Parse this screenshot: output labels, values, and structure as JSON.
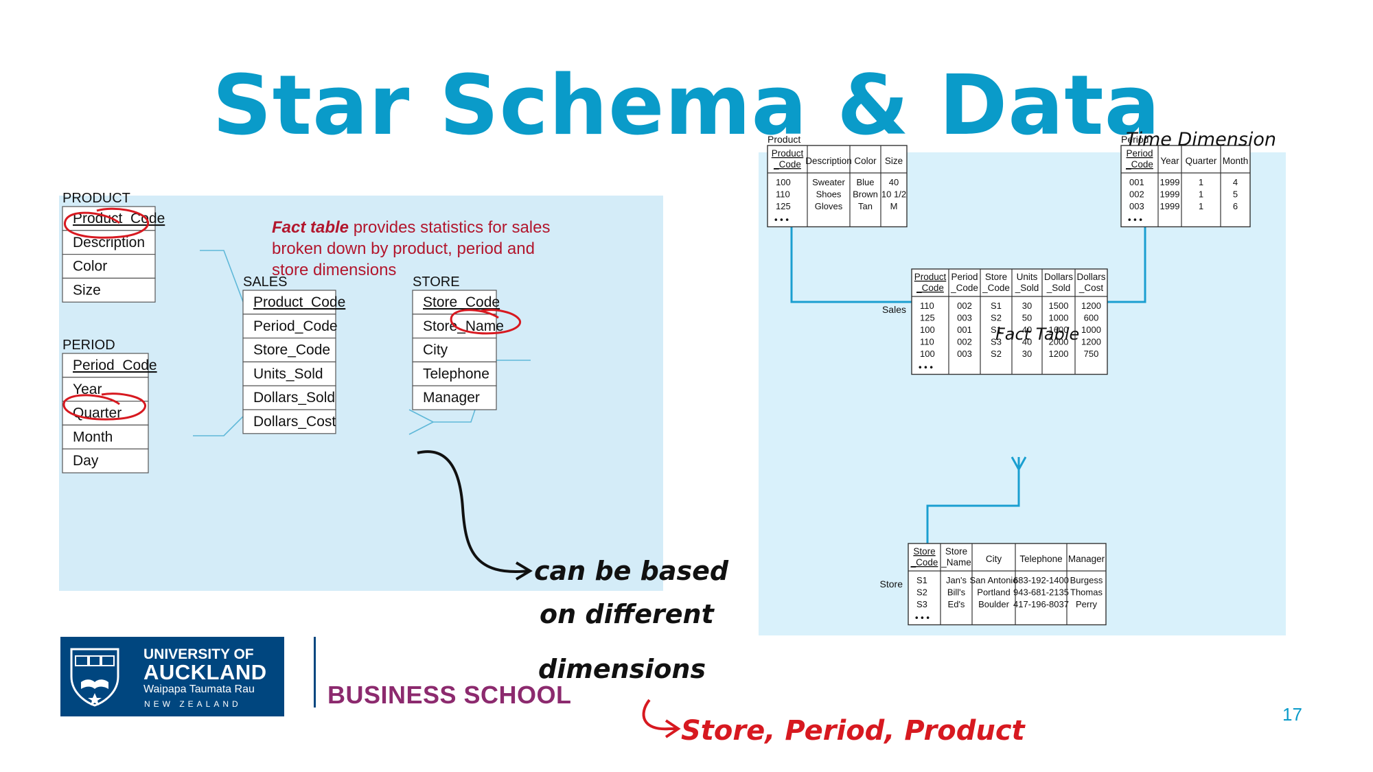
{
  "slide": {
    "title": "Star Schema & Data",
    "page_number": "17",
    "colors": {
      "title": "#0a9bc9",
      "diagram_bg": "#d4ecf8",
      "fact_note": "#b2162d",
      "ink_black": "#111111",
      "ink_red": "#d71920",
      "logo_bg": "#00467f",
      "school": "#8c2a6e"
    }
  },
  "left_diagram": {
    "fact_note_bold": "Fact table",
    "fact_note_lines": [
      " provides statistics for sales",
      "broken down by product, period and",
      "store dimensions"
    ],
    "product": {
      "name": "PRODUCT",
      "fields": [
        "Product_Code",
        "Description",
        "Color",
        "Size"
      ]
    },
    "period": {
      "name": "PERIOD",
      "fields": [
        "Period_Code",
        "Year",
        "Quarter",
        "Month",
        "Day"
      ]
    },
    "sales": {
      "name": "SALES",
      "fields": [
        "Product_Code",
        "Period_Code",
        "Store_Code",
        "Units_Sold",
        "Dollars_Sold",
        "Dollars_Cost"
      ]
    },
    "store": {
      "name": "STORE",
      "fields": [
        "Store_Code",
        "Store_Name",
        "City",
        "Telephone",
        "Manager"
      ]
    }
  },
  "right_diagram": {
    "product": {
      "label": "Product",
      "headers": [
        [
          "Product",
          "_Code"
        ],
        [
          "Description"
        ],
        [
          "Color"
        ],
        [
          "Size"
        ]
      ],
      "rows": [
        [
          "100",
          "Sweater",
          "Blue",
          "40"
        ],
        [
          "110",
          "Shoes",
          "Brown",
          "10 1/2"
        ],
        [
          "125",
          "Gloves",
          "Tan",
          "M"
        ]
      ]
    },
    "period": {
      "label": "Period",
      "headers": [
        [
          "Period",
          "_Code"
        ],
        [
          "Year"
        ],
        [
          "Quarter"
        ],
        [
          "Month"
        ]
      ],
      "rows": [
        [
          "001",
          "1999",
          "1",
          "4"
        ],
        [
          "002",
          "1999",
          "1",
          "5"
        ],
        [
          "003",
          "1999",
          "1",
          "6"
        ]
      ]
    },
    "sales": {
      "label": "Sales",
      "headers": [
        [
          "Product",
          "_Code"
        ],
        [
          "Period",
          "_Code"
        ],
        [
          "Store",
          "_Code"
        ],
        [
          "Units",
          "_Sold"
        ],
        [
          "Dollars",
          "_Sold"
        ],
        [
          "Dollars",
          "_Cost"
        ]
      ],
      "rows": [
        [
          "110",
          "002",
          "S1",
          "30",
          "1500",
          "1200"
        ],
        [
          "125",
          "003",
          "S2",
          "50",
          "1000",
          "600"
        ],
        [
          "100",
          "001",
          "S1",
          "40",
          "1600",
          "1000"
        ],
        [
          "110",
          "002",
          "S3",
          "40",
          "2000",
          "1200"
        ],
        [
          "100",
          "003",
          "S2",
          "30",
          "1200",
          "750"
        ]
      ]
    },
    "store": {
      "label": "Store",
      "headers": [
        [
          "Store",
          "_Code"
        ],
        [
          "Store",
          "_Name"
        ],
        [
          "City"
        ],
        [
          "Telephone"
        ],
        [
          "Manager"
        ]
      ],
      "rows": [
        [
          "S1",
          "Jan's",
          "San Antonio",
          "683-192-1400",
          "Burgess"
        ],
        [
          "S2",
          "Bill's",
          "Portland",
          "943-681-2135",
          "Thomas"
        ],
        [
          "S3",
          "Ed's",
          "Boulder",
          "417-196-8037",
          "Perry"
        ]
      ]
    },
    "ellipsis": "• • •"
  },
  "annotations": {
    "time_dimension": "Time Dimension",
    "fact_table": "Fact Table",
    "note_lines": [
      "can be based",
      "on different",
      "dimensions"
    ],
    "red_note": "Store, Period, Product"
  },
  "logo": {
    "line1": "UNIVERSITY OF",
    "line2": "AUCKLAND",
    "line3": "Waipapa Taumata Rau",
    "line4": "NEW ZEALAND"
  },
  "school_name": "BUSINESS SCHOOL"
}
